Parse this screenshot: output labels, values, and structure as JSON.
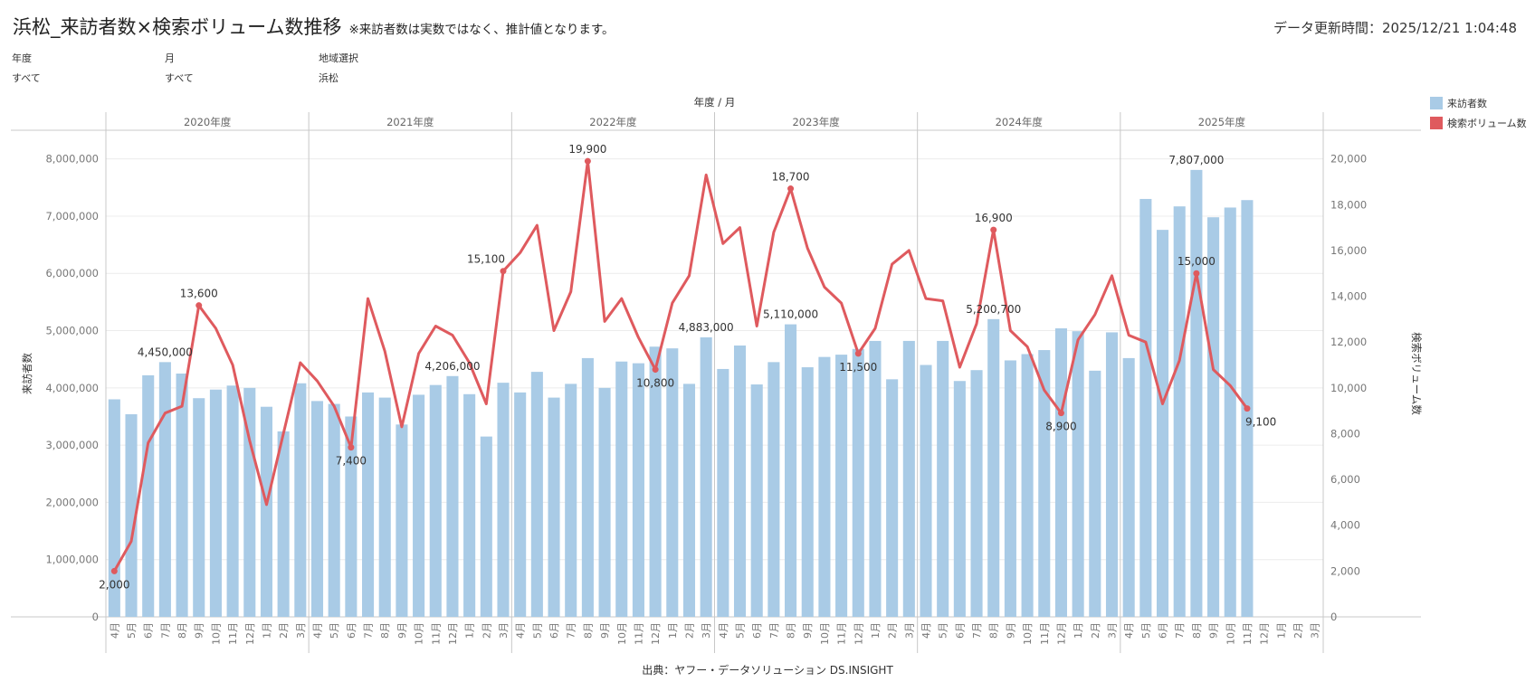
{
  "header": {
    "title": "浜松_来訪者数×検索ボリューム数推移",
    "subtitle": "※来訪者数は実数ではなく、推計値となります。",
    "updated": "データ更新時間：2025/12/21 1:04:48"
  },
  "filters": [
    {
      "label": "年度",
      "value": "すべて"
    },
    {
      "label": "月",
      "value": "すべて"
    },
    {
      "label": "地域選択",
      "value": "浜松"
    }
  ],
  "source": "出典：ヤフー・データソリューション DS.INSIGHT",
  "colors": {
    "bar": "#a9cbe6",
    "line": "#df5a5e",
    "grid": "#ececec",
    "divider": "#c8c8c8"
  },
  "chart_data": {
    "type": "bar",
    "title": "年度 / 月",
    "ylabel": "来訪者数",
    "y2label": "検索ボリューム数",
    "ylim": [
      0,
      8500000
    ],
    "y2lim": [
      0,
      21250
    ],
    "yticks": [
      0,
      1000000,
      2000000,
      3000000,
      4000000,
      5000000,
      6000000,
      7000000,
      8000000
    ],
    "yticklabels": [
      "0",
      "1,000,000",
      "2,000,000",
      "3,000,000",
      "4,000,000",
      "5,000,000",
      "6,000,000",
      "7,000,000",
      "8,000,000"
    ],
    "y2ticks": [
      0,
      2000,
      4000,
      6000,
      8000,
      10000,
      12000,
      14000,
      16000,
      18000,
      20000
    ],
    "y2ticklabels": [
      "0",
      "2,000",
      "4,000",
      "6,000",
      "8,000",
      "10,000",
      "12,000",
      "14,000",
      "16,000",
      "18,000",
      "20,000"
    ],
    "groups": [
      "2020年度",
      "2021年度",
      "2022年度",
      "2023年度",
      "2024年度",
      "2025年度"
    ],
    "months": [
      "4月",
      "5月",
      "6月",
      "7月",
      "8月",
      "9月",
      "10月",
      "11月",
      "12月",
      "1月",
      "2月",
      "3月"
    ],
    "legend": [
      {
        "name": "来訪者数",
        "color": "#a9cbe6"
      },
      {
        "name": "検索ボリューム数",
        "color": "#df5a5e"
      }
    ],
    "series": [
      {
        "name": "来訪者数",
        "type": "bar",
        "values": [
          [
            3800000,
            3540000,
            4220000,
            4450000,
            4250000,
            3820000,
            3970000,
            4040000,
            4000000,
            3670000,
            3240000,
            4080000
          ],
          [
            3770000,
            3720000,
            3500000,
            3920000,
            3830000,
            3360000,
            3880000,
            4050000,
            4206000,
            3890000,
            3150000,
            4090000
          ],
          [
            3920000,
            4280000,
            3830000,
            4070000,
            4520000,
            4000000,
            4460000,
            4430000,
            4720000,
            4690000,
            4070000,
            4883000
          ],
          [
            4330000,
            4740000,
            4060000,
            4450000,
            5110000,
            4360000,
            4540000,
            4580000,
            4680000,
            4820000,
            4150000,
            4820000
          ],
          [
            4400000,
            4820000,
            4120000,
            4310000,
            5200700,
            4480000,
            4590000,
            4660000,
            5040000,
            4990000,
            4300000,
            4970000
          ],
          [
            4520000,
            7300000,
            6760000,
            7170000,
            7807000,
            6980000,
            7150000,
            7280000,
            null,
            null,
            null,
            null
          ]
        ]
      },
      {
        "name": "検索ボリューム数",
        "type": "line",
        "values": [
          [
            2000,
            3300,
            7600,
            8900,
            9200,
            13600,
            12600,
            11000,
            7700,
            4900,
            8000,
            11100
          ],
          [
            10300,
            9200,
            7400,
            13900,
            11600,
            8300,
            11500,
            12700,
            12300,
            11100,
            9300,
            15100
          ],
          [
            15900,
            17100,
            12500,
            14200,
            19900,
            12900,
            13900,
            12200,
            10800,
            13700,
            14900,
            19300
          ],
          [
            16300,
            17000,
            12700,
            16800,
            18700,
            16100,
            14400,
            13700,
            11500,
            12600,
            15400,
            16000
          ],
          [
            13900,
            13800,
            10900,
            12800,
            16900,
            12500,
            11800,
            9900,
            8900,
            12100,
            13200,
            14900
          ],
          [
            12300,
            12000,
            9300,
            11200,
            15000,
            10800,
            10100,
            9100,
            null,
            null,
            null,
            null
          ]
        ]
      }
    ],
    "bar_labels": [
      {
        "g": 0,
        "m": 3,
        "text": "4,450,000"
      },
      {
        "g": 1,
        "m": 8,
        "text": "4,206,000"
      },
      {
        "g": 2,
        "m": 11,
        "text": "4,883,000"
      },
      {
        "g": 3,
        "m": 4,
        "text": "5,110,000"
      },
      {
        "g": 4,
        "m": 4,
        "text": "5,200,700"
      },
      {
        "g": 5,
        "m": 4,
        "text": "7,807,000"
      }
    ],
    "line_labels": [
      {
        "g": 0,
        "m": 0,
        "text": "2,000",
        "pos": "below"
      },
      {
        "g": 0,
        "m": 5,
        "text": "13,600",
        "pos": "above"
      },
      {
        "g": 1,
        "m": 2,
        "text": "7,400",
        "pos": "below"
      },
      {
        "g": 1,
        "m": 11,
        "text": "15,100",
        "pos": "above-left"
      },
      {
        "g": 2,
        "m": 4,
        "text": "19,900",
        "pos": "above"
      },
      {
        "g": 2,
        "m": 8,
        "text": "10,800",
        "pos": "below"
      },
      {
        "g": 3,
        "m": 4,
        "text": "18,700",
        "pos": "above"
      },
      {
        "g": 3,
        "m": 8,
        "text": "11,500",
        "pos": "below"
      },
      {
        "g": 4,
        "m": 4,
        "text": "16,900",
        "pos": "above"
      },
      {
        "g": 4,
        "m": 8,
        "text": "8,900",
        "pos": "below"
      },
      {
        "g": 5,
        "m": 4,
        "text": "15,000",
        "pos": "above"
      },
      {
        "g": 5,
        "m": 7,
        "text": "9,100",
        "pos": "below-right"
      }
    ]
  }
}
